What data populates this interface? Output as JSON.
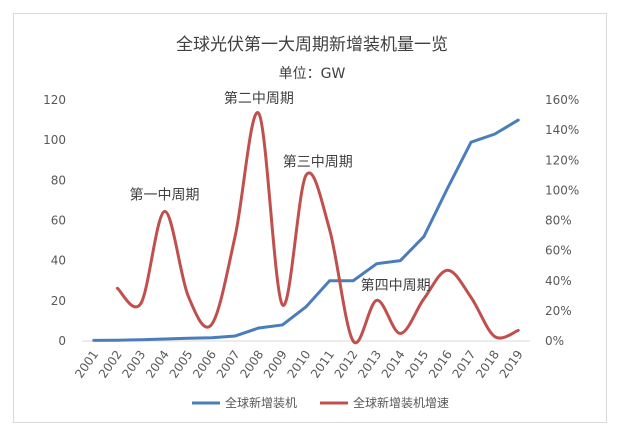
{
  "chart_data": {
    "type": "line",
    "title": "全球光伏第一大周期新增装机量一览",
    "subtitle": "单位：GW",
    "categories": [
      "2001",
      "2002",
      "2003",
      "2004",
      "2005",
      "2006",
      "2007",
      "2008",
      "2009",
      "2010",
      "2011",
      "2012",
      "2013",
      "2014",
      "2015",
      "2016",
      "2017",
      "2018",
      "2019"
    ],
    "y_left": {
      "min": 0,
      "max": 120,
      "ticks": [
        "0",
        "20",
        "40",
        "60",
        "80",
        "100",
        "120"
      ]
    },
    "y_right": {
      "min": 0,
      "max": 1.6,
      "ticks": [
        "0%",
        "20%",
        "40%",
        "60%",
        "80%",
        "100%",
        "120%",
        "140%",
        "160%"
      ]
    },
    "series": [
      {
        "name": "全球新增装机",
        "axis": "left",
        "color": "#4a7ebb",
        "smooth": false,
        "values": [
          0.3,
          0.4,
          0.6,
          1.0,
          1.4,
          1.6,
          2.5,
          6.5,
          8.0,
          17,
          30,
          30,
          38.5,
          40,
          52,
          76,
          99,
          103,
          110
        ]
      },
      {
        "name": "全球新增装机增速",
        "axis": "right",
        "color": "#c0504d",
        "smooth": true,
        "values": [
          null,
          0.35,
          0.25,
          0.86,
          0.3,
          0.11,
          0.7,
          1.51,
          0.24,
          1.1,
          0.74,
          0.0,
          0.27,
          0.05,
          0.28,
          0.47,
          0.29,
          0.03,
          0.07
        ]
      }
    ],
    "annotations": [
      {
        "label": "第一中周期",
        "x": "2004",
        "y_right": 0.98
      },
      {
        "label": "第二中周期",
        "x": "2008",
        "y_right": 1.62
      },
      {
        "label": "第三中周期",
        "x": "2010.5",
        "y_right": 1.2
      },
      {
        "label": "第四中周期",
        "x": "2013.8",
        "y_right": 0.38
      }
    ],
    "legend_position": "bottom",
    "grid": false
  }
}
